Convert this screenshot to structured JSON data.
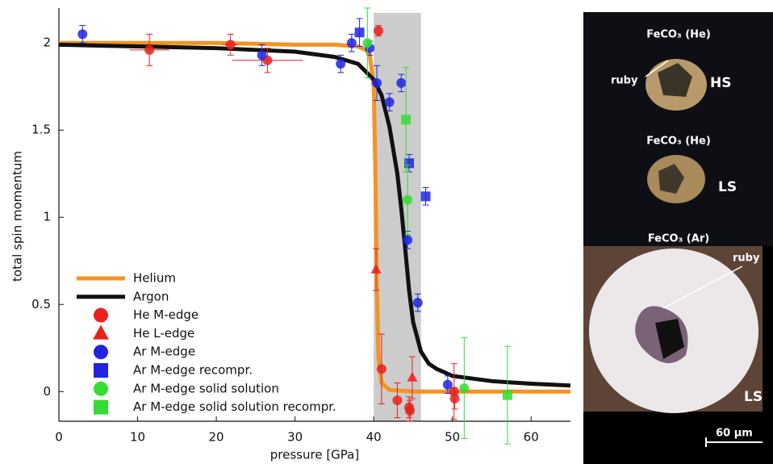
{
  "chart_data": {
    "type": "scatter",
    "x_label": "pressure [GPa]",
    "y_label": "total spin momentum",
    "xlim": [
      0,
      65
    ],
    "ylim": [
      -0.17,
      2.2
    ],
    "xticks": [
      0,
      10,
      20,
      30,
      40,
      50,
      60
    ],
    "yticks": [
      0,
      0.5,
      1,
      1.5,
      2
    ],
    "shaded_region": [
      40,
      46
    ],
    "shade_color": "#cccccc",
    "legend": "lower left",
    "series": [
      {
        "name": "Helium",
        "type": "line",
        "color": "#f39322",
        "x": [
          0,
          10,
          20,
          30,
          35,
          38,
          39,
          39.5,
          40,
          40.2,
          40.4,
          40.6,
          41,
          42,
          45,
          50,
          65
        ],
        "values": [
          2.0,
          2.0,
          2.0,
          1.99,
          1.99,
          1.98,
          1.96,
          1.93,
          1.75,
          1.3,
          0.6,
          0.2,
          0.05,
          0.01,
          0.0,
          0.0,
          0.0
        ]
      },
      {
        "name": "Argon",
        "type": "line",
        "color": "#111111",
        "x": [
          0,
          10,
          20,
          30,
          35,
          38,
          40,
          41,
          42,
          43,
          43.5,
          44,
          44.5,
          45,
          46,
          47,
          48,
          50,
          55,
          60,
          65
        ],
        "values": [
          1.99,
          1.98,
          1.97,
          1.95,
          1.92,
          1.88,
          1.79,
          1.7,
          1.52,
          1.25,
          1.05,
          0.82,
          0.58,
          0.4,
          0.23,
          0.16,
          0.13,
          0.09,
          0.06,
          0.045,
          0.035
        ]
      },
      {
        "name": "He M-edge",
        "type": "scatter",
        "marker": "circle",
        "color": "#e8211c",
        "x": [
          11.5,
          21.8,
          26.5,
          40.6,
          41.0,
          43.0,
          44.5,
          44.6,
          50.2,
          50.3
        ],
        "values": [
          1.96,
          1.99,
          1.9,
          2.07,
          0.13,
          -0.05,
          -0.09,
          -0.11,
          0.0,
          -0.04
        ],
        "yerr": [
          0.09,
          0.06,
          0.07,
          0.03,
          0.2,
          0.1,
          0.06,
          0.06,
          0.16,
          0.06
        ],
        "xerr": [
          2.5,
          1.0,
          4.5,
          null,
          null,
          null,
          null,
          null,
          null,
          null
        ]
      },
      {
        "name": "He L-edge",
        "type": "scatter",
        "marker": "triangle",
        "color": "#e8211c",
        "x": [
          40.3,
          44.9
        ],
        "values": [
          0.7,
          0.08
        ],
        "yerr": [
          0.12,
          0.12
        ],
        "xerr": [
          null,
          null
        ]
      },
      {
        "name": "Ar M-edge",
        "type": "scatter",
        "marker": "circle",
        "color": "#1f24e0",
        "x": [
          3.0,
          25.8,
          35.8,
          37.2,
          39.5,
          40.4,
          42.0,
          43.5,
          44.3,
          45.6,
          49.4
        ],
        "values": [
          2.05,
          1.93,
          1.88,
          2.0,
          1.97,
          1.77,
          1.66,
          1.77,
          0.87,
          0.51,
          0.04
        ],
        "yerr": [
          0.05,
          0.06,
          0.05,
          0.05,
          0.04,
          0.1,
          0.05,
          0.05,
          0.05,
          0.05,
          0.05
        ],
        "xerr": [
          null,
          null,
          null,
          null,
          null,
          null,
          null,
          null,
          null,
          null,
          null
        ]
      },
      {
        "name": "Ar M-edge recompr.",
        "type": "scatter",
        "marker": "square",
        "color": "#1f24e0",
        "x": [
          38.2,
          44.5,
          46.6
        ],
        "values": [
          2.06,
          1.31,
          1.12
        ],
        "yerr": [
          0.08,
          0.05,
          0.05
        ],
        "xerr": [
          null,
          null,
          null
        ]
      },
      {
        "name": "Ar M-edge solid solution",
        "type": "scatter",
        "marker": "circle",
        "color": "#33dd33",
        "x": [
          39.2,
          44.3,
          51.5
        ],
        "values": [
          2.0,
          1.1,
          0.02
        ],
        "yerr": [
          0.2,
          0.2,
          0.29
        ],
        "xerr": [
          null,
          null,
          null
        ]
      },
      {
        "name": "Ar M-edge solid solution recompr.",
        "type": "scatter",
        "marker": "square",
        "color": "#33dd33",
        "x": [
          44.1,
          57.0
        ],
        "values": [
          1.56,
          -0.02
        ],
        "yerr": [
          0.3,
          0.28
        ],
        "xerr": [
          null,
          null
        ]
      }
    ]
  },
  "micrographs": {
    "labels": [
      "FeCO₃ (He)",
      "ruby",
      "HS",
      "FeCO₃ (He)",
      "LS",
      "FeCO₃ (Ar)",
      "ruby",
      "LS",
      "60 µm"
    ]
  }
}
